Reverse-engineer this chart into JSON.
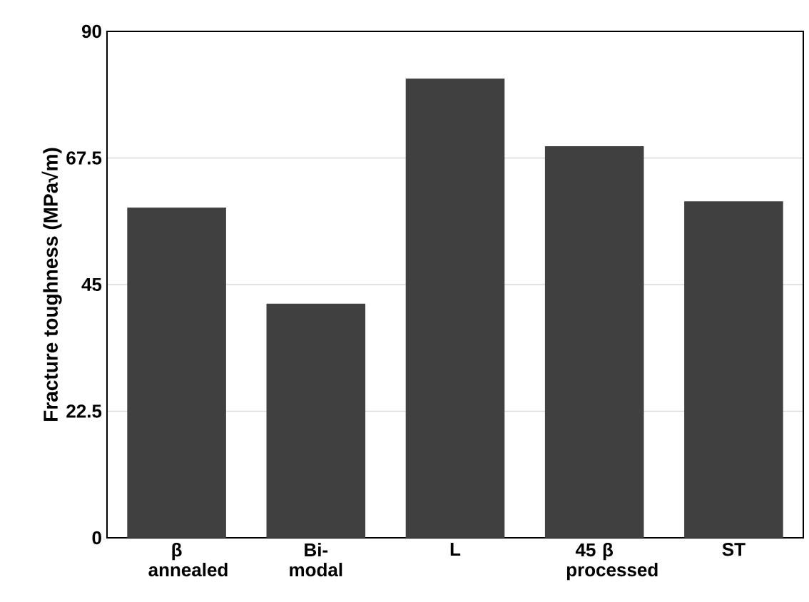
{
  "chart_data": {
    "type": "bar",
    "ylabel": "Fracture toughness (MPa√m)",
    "categories": [
      "β annealed",
      "Bi-modal",
      "L",
      "45 β processed",
      "ST"
    ],
    "values": [
      58.7,
      41.6,
      81.6,
      69.6,
      59.8
    ],
    "color": "#404040",
    "ylim": [
      0,
      90
    ],
    "yticks": [
      0,
      22.5,
      45,
      67.5,
      90
    ],
    "grid": "y"
  }
}
